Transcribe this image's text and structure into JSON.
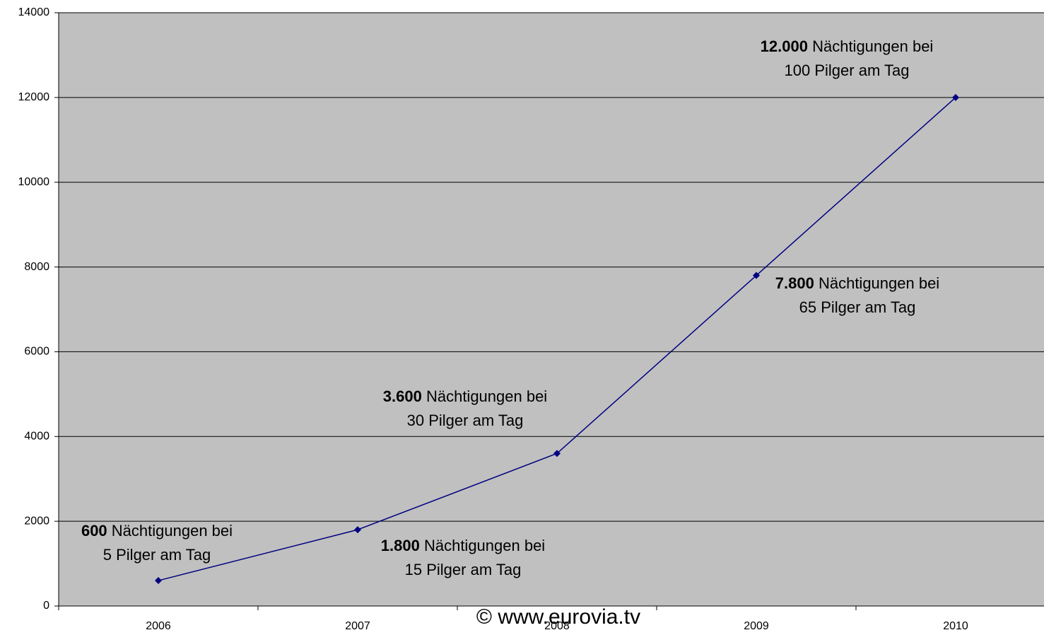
{
  "chart_data": {
    "type": "line",
    "categories": [
      "2006",
      "2007",
      "2008",
      "2009",
      "2010"
    ],
    "series": [
      {
        "name": "Nächtigungen",
        "color": "#000080",
        "values": [
          600,
          1800,
          3600,
          7800,
          12000
        ]
      }
    ],
    "ylim": [
      0,
      14000
    ],
    "yticks": [
      0,
      2000,
      4000,
      6000,
      8000,
      10000,
      12000,
      14000
    ],
    "grid": true,
    "annotations": [
      {
        "bold": "600",
        "text": "Nächtigungen  bei",
        "line2": "5 Pilger am Tag"
      },
      {
        "bold": "1.800",
        "text": "Nächtigungen  bei",
        "line2": "15 Pilger am Tag"
      },
      {
        "bold": "3.600",
        "text": "Nächtigungen  bei",
        "line2": "30 Pilger am Tag"
      },
      {
        "bold": "7.800",
        "text": "Nächtigungen  bei",
        "line2": "65 Pilger am Tag"
      },
      {
        "bold": "12.000",
        "text": "Nächtigungen  bei",
        "line2": "100 Pilger am Tag"
      }
    ],
    "copyright": "© www.eurovia.tv"
  }
}
